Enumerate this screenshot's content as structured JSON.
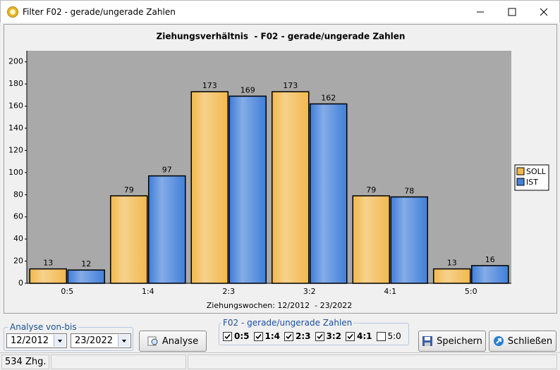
{
  "window": {
    "title": "Filter F02 - gerade/ungerade Zahlen"
  },
  "chart_data": {
    "type": "bar",
    "title": "Ziehungsverhältnis  - F02 - gerade/ungerade Zahlen",
    "x_label": "Ziehungswochen: 12/2012  - 23/2022",
    "categories": [
      "0:5",
      "1:4",
      "2:3",
      "3:2",
      "4:1",
      "5:0"
    ],
    "series": [
      {
        "name": "SOLL",
        "color": "#f2b94f",
        "values": [
          13,
          79,
          173,
          173,
          79,
          13
        ]
      },
      {
        "name": "IST",
        "color": "#4380d9",
        "values": [
          12,
          97,
          169,
          162,
          78,
          16
        ]
      }
    ],
    "ylim": [
      0,
      210
    ],
    "yticks": [
      0,
      20,
      40,
      60,
      80,
      100,
      120,
      140,
      160,
      180,
      200
    ],
    "legend": "right",
    "plot_background": "#a9a9a9"
  },
  "controls": {
    "range_group": {
      "label": "Analyse von-bis",
      "from": "12/2012",
      "to": "23/2022"
    },
    "analyse_button": "Analyse",
    "filter_group": {
      "label": "F02 - gerade/ungerade Zahlen",
      "options": [
        {
          "label": "0:5",
          "checked": true
        },
        {
          "label": "1:4",
          "checked": true
        },
        {
          "label": "2:3",
          "checked": true
        },
        {
          "label": "3:2",
          "checked": true
        },
        {
          "label": "4:1",
          "checked": true
        },
        {
          "label": "5:0",
          "checked": false
        }
      ]
    },
    "save_button": "Speichern",
    "close_button": "Schließen"
  },
  "status_bar": {
    "count": "534 Zhg."
  }
}
